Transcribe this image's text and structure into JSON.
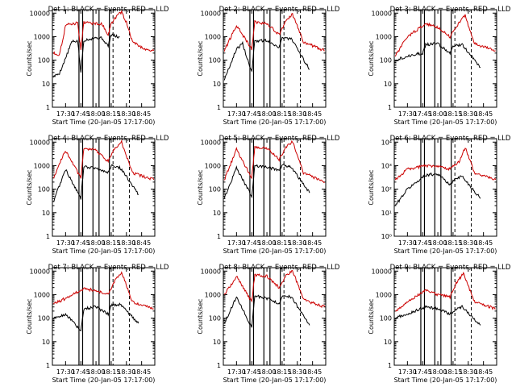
{
  "chart_data": [
    {
      "type": "line",
      "title": "Det 1: BLACK = Events, RED = LLD",
      "ylabel": "Counts/sec",
      "xlabel": "Start Time (20-Jan-05 17:17:00)",
      "xlim": [
        "17:17",
        "18:58"
      ],
      "ylim": [
        1,
        14000
      ],
      "yscale": "log",
      "x_ticks": [
        "17:30",
        "17:45",
        "18:00",
        "18:15",
        "18:30",
        "18:45"
      ],
      "y_ticks": [
        "1",
        "10",
        "100",
        "1000",
        "10000"
      ],
      "series": [
        {
          "name": "Events",
          "color": "#000000",
          "values": [
            [
              17.3,
              20
            ],
            [
              17.4,
              28
            ],
            [
              17.5,
              120
            ],
            [
              17.6,
              600
            ],
            [
              17.7,
              650
            ],
            [
              17.75,
              30
            ],
            [
              17.8,
              700
            ],
            [
              17.9,
              800
            ],
            [
              18.0,
              900
            ],
            [
              18.1,
              850
            ],
            [
              18.2,
              400
            ],
            [
              18.25,
              1200
            ],
            [
              18.4,
              900
            ],
            [
              18.6,
              null
            ],
            [
              18.7,
              60
            ]
          ]
        },
        {
          "name": "LLD",
          "color": "#cc0000",
          "values": [
            [
              17.3,
              200
            ],
            [
              17.4,
              170
            ],
            [
              17.5,
              3000
            ],
            [
              17.6,
              3500
            ],
            [
              17.7,
              3800
            ],
            [
              17.75,
              300
            ],
            [
              17.8,
              4000
            ],
            [
              17.9,
              3800
            ],
            [
              18.0,
              3600
            ],
            [
              18.1,
              3400
            ],
            [
              18.2,
              1200
            ],
            [
              18.25,
              3500
            ],
            [
              18.35,
              8000
            ],
            [
              18.42,
              11000
            ],
            [
              18.5,
              4000
            ],
            [
              18.6,
              600
            ],
            [
              18.8,
              300
            ],
            [
              18.95,
              250
            ]
          ]
        }
      ]
    },
    {
      "type": "line",
      "title": "Det 2: BLACK = Events, RED = LLD",
      "ylabel": "Counts/sec",
      "xlabel": "Start Time (20-Jan-05 17:17:00)",
      "xlim": [
        "17:17",
        "18:58"
      ],
      "ylim": [
        1,
        14000
      ],
      "yscale": "log",
      "x_ticks": [
        "17:30",
        "17:45",
        "18:00",
        "18:15",
        "18:30",
        "18:45"
      ],
      "y_ticks": [
        "1",
        "10",
        "100",
        "1000",
        "10000"
      ],
      "series": [
        {
          "name": "Events",
          "color": "#000000",
          "values": [
            [
              17.3,
              15
            ],
            [
              17.5,
              300
            ],
            [
              17.6,
              500
            ],
            [
              17.75,
              30
            ],
            [
              17.8,
              650
            ],
            [
              18.0,
              700
            ],
            [
              18.2,
              350
            ],
            [
              18.25,
              900
            ],
            [
              18.4,
              800
            ],
            [
              18.7,
              40
            ]
          ]
        },
        {
          "name": "LLD",
          "color": "#cc0000",
          "values": [
            [
              17.3,
              250
            ],
            [
              17.5,
              3000
            ],
            [
              17.75,
              300
            ],
            [
              17.8,
              4200
            ],
            [
              18.0,
              3600
            ],
            [
              18.2,
              1200
            ],
            [
              18.3,
              4000
            ],
            [
              18.42,
              9000
            ],
            [
              18.6,
              600
            ],
            [
              18.95,
              250
            ]
          ]
        }
      ]
    },
    {
      "type": "line",
      "title": "Det 3: BLACK = Events, RED = LLD",
      "ylabel": "Counts/sec",
      "xlabel": "Start Time (20-Jan-05 17:17:00)",
      "xlim": [
        "17:17",
        "18:58"
      ],
      "ylim": [
        1,
        14000
      ],
      "yscale": "log",
      "x_ticks": [
        "17:30",
        "17:45",
        "18:00",
        "18:15",
        "18:30",
        "18:45"
      ],
      "y_ticks": [
        "1",
        "10",
        "100",
        "1000",
        "10000"
      ],
      "series": [
        {
          "name": "Events",
          "color": "#000000",
          "values": [
            [
              17.3,
              100
            ],
            [
              17.5,
              150
            ],
            [
              17.75,
              200
            ],
            [
              17.8,
              450
            ],
            [
              18.0,
              500
            ],
            [
              18.2,
              200
            ],
            [
              18.25,
              400
            ],
            [
              18.4,
              450
            ],
            [
              18.7,
              50
            ]
          ]
        },
        {
          "name": "LLD",
          "color": "#cc0000",
          "values": [
            [
              17.3,
              150
            ],
            [
              17.5,
              1000
            ],
            [
              17.8,
              3500
            ],
            [
              18.0,
              2500
            ],
            [
              18.2,
              1000
            ],
            [
              18.35,
              4000
            ],
            [
              18.45,
              8000
            ],
            [
              18.6,
              500
            ],
            [
              18.95,
              250
            ]
          ]
        }
      ]
    },
    {
      "type": "line",
      "title": "Det 4: BLACK = Events, RED = LLD",
      "ylabel": "Counts/sec",
      "xlabel": "Start Time (20-Jan-05 17:17:00)",
      "xlim": [
        "17:17",
        "18:58"
      ],
      "ylim": [
        1,
        14000
      ],
      "yscale": "log",
      "x_ticks": [
        "17:30",
        "17:45",
        "18:00",
        "18:15",
        "18:30",
        "18:45"
      ],
      "y_ticks": [
        "1",
        "10",
        "100",
        "1000",
        "10000"
      ],
      "series": [
        {
          "name": "Events",
          "color": "#000000",
          "values": [
            [
              17.3,
              30
            ],
            [
              17.5,
              700
            ],
            [
              17.75,
              40
            ],
            [
              17.8,
              900
            ],
            [
              18.0,
              800
            ],
            [
              18.2,
              500
            ],
            [
              18.25,
              1000
            ],
            [
              18.4,
              800
            ],
            [
              18.7,
              60
            ]
          ]
        },
        {
          "name": "LLD",
          "color": "#cc0000",
          "values": [
            [
              17.3,
              300
            ],
            [
              17.5,
              4500
            ],
            [
              17.75,
              300
            ],
            [
              17.8,
              5000
            ],
            [
              18.0,
              4500
            ],
            [
              18.2,
              1500
            ],
            [
              18.3,
              5000
            ],
            [
              18.42,
              10000
            ],
            [
              18.6,
              500
            ],
            [
              18.95,
              250
            ]
          ]
        }
      ]
    },
    {
      "type": "line",
      "title": "Det 5: BLACK = Events, RED = LLD",
      "ylabel": "Counts/sec",
      "xlabel": "Start Time (20-Jan-05 17:17:00)",
      "xlim": [
        "17:17",
        "18:58"
      ],
      "ylim": [
        1,
        14000
      ],
      "yscale": "log",
      "x_ticks": [
        "17:30",
        "17:45",
        "18:00",
        "18:15",
        "18:30",
        "18:45"
      ],
      "y_ticks": [
        "1",
        "10",
        "100",
        "1000",
        "10000"
      ],
      "series": [
        {
          "name": "Events",
          "color": "#000000",
          "values": [
            [
              17.3,
              40
            ],
            [
              17.5,
              800
            ],
            [
              17.75,
              50
            ],
            [
              17.8,
              1000
            ],
            [
              18.0,
              900
            ],
            [
              18.2,
              600
            ],
            [
              18.25,
              1100
            ],
            [
              18.4,
              900
            ],
            [
              18.7,
              70
            ]
          ]
        },
        {
          "name": "LLD",
          "color": "#cc0000",
          "values": [
            [
              17.3,
              250
            ],
            [
              17.5,
              5000
            ],
            [
              17.75,
              300
            ],
            [
              17.8,
              6000
            ],
            [
              18.0,
              5500
            ],
            [
              18.2,
              1800
            ],
            [
              18.3,
              5500
            ],
            [
              18.42,
              11000
            ],
            [
              18.6,
              500
            ],
            [
              18.95,
              200
            ]
          ]
        }
      ]
    },
    {
      "type": "line",
      "title": "Det 6: BLACK = Events, RED = LLD",
      "ylabel": "Counts/sec",
      "xlabel": "Start Time (20-Jan-05 17:17:00)",
      "xlim": [
        "17:17",
        "18:58"
      ],
      "ylim": [
        1,
        14000
      ],
      "yscale": "log",
      "x_ticks": [
        "17:30",
        "17:45",
        "18:00",
        "18:15",
        "18:30",
        "18:45"
      ],
      "y_ticks": [
        "10⁰",
        "10¹",
        "10²",
        "10³",
        "10⁴"
      ],
      "series": [
        {
          "name": "Events",
          "color": "#000000",
          "values": [
            [
              17.3,
              20
            ],
            [
              17.5,
              100
            ],
            [
              17.8,
              400
            ],
            [
              18.0,
              450
            ],
            [
              18.2,
              150
            ],
            [
              18.3,
              300
            ],
            [
              18.4,
              350
            ],
            [
              18.7,
              40
            ]
          ]
        },
        {
          "name": "LLD",
          "color": "#cc0000",
          "values": [
            [
              17.3,
              250
            ],
            [
              17.5,
              700
            ],
            [
              17.8,
              1000
            ],
            [
              18.0,
              900
            ],
            [
              18.2,
              700
            ],
            [
              18.35,
              1500
            ],
            [
              18.45,
              6000
            ],
            [
              18.6,
              500
            ],
            [
              18.95,
              250
            ]
          ]
        }
      ]
    },
    {
      "type": "line",
      "title": "Det 7: BLACK = Events, RED = LLD",
      "ylabel": "Counts/sec",
      "xlabel": "Start Time (20-Jan-05 17:17:00)",
      "xlim": [
        "17:17",
        "18:58"
      ],
      "ylim": [
        1,
        14000
      ],
      "yscale": "log",
      "x_ticks": [
        "17:30",
        "17:45",
        "18:00",
        "18:15",
        "18:30",
        "18:45"
      ],
      "y_ticks": [
        "1",
        "10",
        "100",
        "1000",
        "10000"
      ],
      "series": [
        {
          "name": "Events",
          "color": "#000000",
          "values": [
            [
              17.3,
              100
            ],
            [
              17.5,
              150
            ],
            [
              17.75,
              30
            ],
            [
              17.8,
              250
            ],
            [
              18.0,
              300
            ],
            [
              18.2,
              150
            ],
            [
              18.25,
              350
            ],
            [
              18.4,
              400
            ],
            [
              18.7,
              60
            ]
          ]
        },
        {
          "name": "LLD",
          "color": "#cc0000",
          "values": [
            [
              17.3,
              400
            ],
            [
              17.5,
              700
            ],
            [
              17.8,
              1800
            ],
            [
              18.0,
              1500
            ],
            [
              18.2,
              1000
            ],
            [
              18.3,
              3500
            ],
            [
              18.42,
              9000
            ],
            [
              18.6,
              500
            ],
            [
              18.95,
              250
            ]
          ]
        }
      ]
    },
    {
      "type": "line",
      "title": "Det 8: BLACK = Events, RED = LLD",
      "ylabel": "Counts/sec",
      "xlabel": "Start Time (20-Jan-05 17:17:00)",
      "xlim": [
        "17:17",
        "18:58"
      ],
      "ylim": [
        1,
        14000
      ],
      "yscale": "log",
      "x_ticks": [
        "17:30",
        "17:45",
        "18:00",
        "18:15",
        "18:30",
        "18:45"
      ],
      "y_ticks": [
        "1",
        "10",
        "100",
        "1000",
        "10000"
      ],
      "series": [
        {
          "name": "Events",
          "color": "#000000",
          "values": [
            [
              17.3,
              60
            ],
            [
              17.5,
              800
            ],
            [
              17.75,
              40
            ],
            [
              17.8,
              900
            ],
            [
              18.0,
              700
            ],
            [
              18.2,
              400
            ],
            [
              18.25,
              900
            ],
            [
              18.4,
              800
            ],
            [
              18.7,
              50
            ]
          ]
        },
        {
          "name": "LLD",
          "color": "#cc0000",
          "values": [
            [
              17.3,
              1000
            ],
            [
              17.5,
              6000
            ],
            [
              17.75,
              500
            ],
            [
              17.8,
              7000
            ],
            [
              18.0,
              6000
            ],
            [
              18.2,
              2000
            ],
            [
              18.3,
              6000
            ],
            [
              18.42,
              11000
            ],
            [
              18.6,
              600
            ],
            [
              18.95,
              300
            ]
          ]
        }
      ]
    },
    {
      "type": "line",
      "title": "Det 9: BLACK = Events, RED = LLD",
      "ylabel": "Counts/sec",
      "xlabel": "Start Time (20-Jan-05 17:17:00)",
      "xlim": [
        "17:17",
        "18:58"
      ],
      "ylim": [
        1,
        14000
      ],
      "yscale": "log",
      "x_ticks": [
        "17:30",
        "17:45",
        "18:00",
        "18:15",
        "18:30",
        "18:45"
      ],
      "y_ticks": [
        "1",
        "10",
        "100",
        "1000",
        "10000"
      ],
      "series": [
        {
          "name": "Events",
          "color": "#000000",
          "values": [
            [
              17.3,
              100
            ],
            [
              17.5,
              150
            ],
            [
              17.8,
              300
            ],
            [
              18.0,
              250
            ],
            [
              18.2,
              150
            ],
            [
              18.3,
              250
            ],
            [
              18.4,
              300
            ],
            [
              18.7,
              50
            ]
          ]
        },
        {
          "name": "LLD",
          "color": "#cc0000",
          "values": [
            [
              17.3,
              200
            ],
            [
              17.5,
              500
            ],
            [
              17.8,
              1500
            ],
            [
              18.0,
              1000
            ],
            [
              18.2,
              800
            ],
            [
              18.3,
              3000
            ],
            [
              18.42,
              8000
            ],
            [
              18.6,
              500
            ],
            [
              18.95,
              250
            ]
          ]
        }
      ]
    }
  ]
}
